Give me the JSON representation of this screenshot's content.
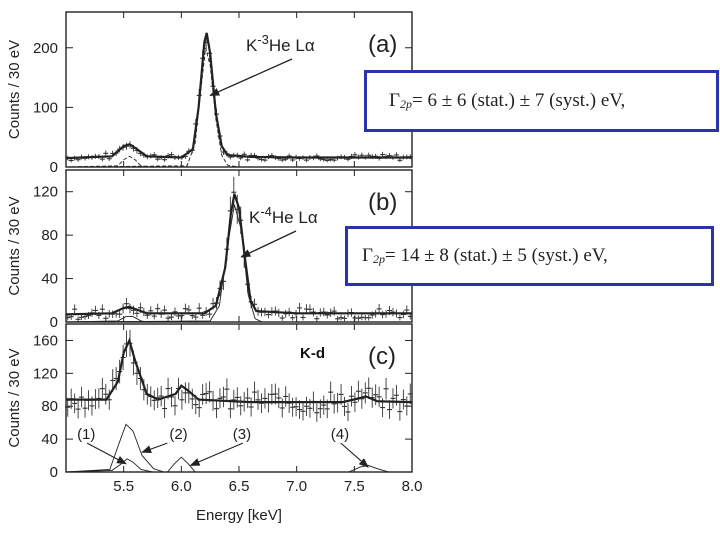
{
  "chart_data": {
    "type": "line",
    "xlabel": "Energy [keV]",
    "xlim": [
      5.0,
      8.0
    ],
    "xticks": [
      "5.5",
      "6.0",
      "6.5",
      "7.0",
      "7.5",
      "8.0"
    ],
    "xtick_values": [
      5.5,
      6.0,
      6.5,
      7.0,
      7.5,
      8.0
    ],
    "panels": [
      {
        "id": "a",
        "label": "(a)",
        "ylabel": "Counts / 30 eV",
        "ylim": [
          0,
          260
        ],
        "yticks": [
          "0",
          "100",
          "200"
        ],
        "ytick_values": [
          0,
          100,
          200
        ],
        "annotation_pre": "K",
        "annotation_sup": "-3",
        "annotation_post": "He Lα",
        "arrow_target": [
          6.25,
          120
        ],
        "series": [
          {
            "name": "total fit",
            "points": [
              [
                5.0,
                15
              ],
              [
                5.4,
                18
              ],
              [
                5.5,
                35
              ],
              [
                5.55,
                38
              ],
              [
                5.6,
                32
              ],
              [
                5.7,
                18
              ],
              [
                6.0,
                16
              ],
              [
                6.1,
                30
              ],
              [
                6.15,
                100
              ],
              [
                6.2,
                210
              ],
              [
                6.22,
                225
              ],
              [
                6.25,
                190
              ],
              [
                6.3,
                90
              ],
              [
                6.35,
                35
              ],
              [
                6.4,
                20
              ],
              [
                6.6,
                17
              ],
              [
                7.0,
                16
              ],
              [
                7.5,
                16
              ],
              [
                8.0,
                16
              ]
            ]
          },
          {
            "name": "K-3He Lα component",
            "points": [
              [
                5.0,
                0
              ],
              [
                6.05,
                2
              ],
              [
                6.12,
                40
              ],
              [
                6.17,
                130
              ],
              [
                6.21,
                200
              ],
              [
                6.25,
                170
              ],
              [
                6.3,
                80
              ],
              [
                6.35,
                20
              ],
              [
                6.4,
                3
              ],
              [
                6.5,
                0
              ],
              [
                8.0,
                0
              ]
            ]
          },
          {
            "name": "K-p Lα component",
            "points": [
              [
                5.0,
                0
              ],
              [
                5.45,
                2
              ],
              [
                5.5,
                12
              ],
              [
                5.55,
                18
              ],
              [
                5.6,
                12
              ],
              [
                5.65,
                2
              ],
              [
                5.7,
                0
              ],
              [
                8.0,
                0
              ]
            ]
          }
        ]
      },
      {
        "id": "b",
        "label": "(b)",
        "ylabel": "Counts / 30 eV",
        "ylim": [
          0,
          140
        ],
        "yticks": [
          "0",
          "40",
          "80",
          "120"
        ],
        "ytick_values": [
          0,
          40,
          80,
          120
        ],
        "annotation_pre": "K",
        "annotation_sup": "-4",
        "annotation_post": "He Lα",
        "arrow_target": [
          6.52,
          60
        ],
        "series": [
          {
            "name": "total fit",
            "points": [
              [
                5.0,
                7
              ],
              [
                5.4,
                8
              ],
              [
                5.5,
                13
              ],
              [
                5.55,
                14
              ],
              [
                5.6,
                12
              ],
              [
                5.7,
                8
              ],
              [
                6.2,
                8
              ],
              [
                6.3,
                15
              ],
              [
                6.38,
                50
              ],
              [
                6.43,
                100
              ],
              [
                6.46,
                118
              ],
              [
                6.5,
                105
              ],
              [
                6.55,
                60
              ],
              [
                6.6,
                20
              ],
              [
                6.65,
                10
              ],
              [
                7.0,
                8
              ],
              [
                7.5,
                8
              ],
              [
                8.0,
                8
              ]
            ]
          },
          {
            "name": "K-4He Lα component",
            "points": [
              [
                5.0,
                0
              ],
              [
                6.25,
                1
              ],
              [
                6.33,
                15
              ],
              [
                6.4,
                70
              ],
              [
                6.46,
                108
              ],
              [
                6.52,
                85
              ],
              [
                6.58,
                25
              ],
              [
                6.64,
                3
              ],
              [
                6.7,
                0
              ],
              [
                8.0,
                0
              ]
            ]
          },
          {
            "name": "K-p Lα component",
            "points": [
              [
                5.0,
                0
              ],
              [
                5.45,
                1
              ],
              [
                5.52,
                5
              ],
              [
                5.58,
                5
              ],
              [
                5.65,
                1
              ],
              [
                5.7,
                0
              ],
              [
                8.0,
                0
              ]
            ]
          }
        ]
      },
      {
        "id": "c",
        "label": "(c)",
        "ylabel": "Counts / 30 eV",
        "ylim": [
          0,
          180
        ],
        "yticks": [
          "0",
          "40",
          "80",
          "120",
          "160"
        ],
        "ytick_values": [
          0,
          40,
          80,
          120,
          160
        ],
        "annotation": "K-d",
        "series": [
          {
            "name": "total fit",
            "points": [
              [
                5.0,
                88
              ],
              [
                5.35,
                88
              ],
              [
                5.45,
                110
              ],
              [
                5.5,
                145
              ],
              [
                5.55,
                160
              ],
              [
                5.6,
                135
              ],
              [
                5.7,
                95
              ],
              [
                5.8,
                88
              ],
              [
                5.95,
                95
              ],
              [
                6.0,
                105
              ],
              [
                6.05,
                100
              ],
              [
                6.15,
                88
              ],
              [
                6.6,
                85
              ],
              [
                7.0,
                85
              ],
              [
                7.4,
                85
              ],
              [
                7.55,
                90
              ],
              [
                7.6,
                92
              ],
              [
                7.7,
                86
              ],
              [
                8.0,
                85
              ]
            ]
          },
          {
            "name": "(1) component",
            "points": [
              [
                5.0,
                0
              ],
              [
                5.4,
                2
              ],
              [
                5.48,
                10
              ],
              [
                5.53,
                16
              ],
              [
                5.58,
                12
              ],
              [
                5.65,
                3
              ],
              [
                5.75,
                0
              ],
              [
                8.0,
                0
              ]
            ]
          },
          {
            "name": "(2) component",
            "points": [
              [
                5.0,
                0
              ],
              [
                5.38,
                3
              ],
              [
                5.46,
                35
              ],
              [
                5.52,
                58
              ],
              [
                5.58,
                50
              ],
              [
                5.66,
                20
              ],
              [
                5.76,
                4
              ],
              [
                5.85,
                0
              ],
              [
                8.0,
                0
              ]
            ]
          },
          {
            "name": "(3) component",
            "points": [
              [
                5.0,
                0
              ],
              [
                5.88,
                0
              ],
              [
                5.94,
                10
              ],
              [
                6.0,
                18
              ],
              [
                6.06,
                10
              ],
              [
                6.12,
                0
              ],
              [
                8.0,
                0
              ]
            ]
          },
          {
            "name": "(4) component",
            "points": [
              [
                5.0,
                0
              ],
              [
                7.45,
                0
              ],
              [
                7.55,
                6
              ],
              [
                7.62,
                8
              ],
              [
                7.7,
                4
              ],
              [
                7.8,
                0
              ],
              [
                8.0,
                0
              ]
            ]
          }
        ],
        "component_labels": [
          {
            "text": "(1)",
            "at": [
              5.2,
              40
            ],
            "arrow_target": [
              5.52,
              10
            ]
          },
          {
            "text": "(2)",
            "at": [
              6.0,
              40
            ],
            "arrow_target": [
              5.66,
              24
            ]
          },
          {
            "text": "(3)",
            "at": [
              6.55,
              40
            ],
            "arrow_target": [
              6.08,
              8
            ]
          },
          {
            "text": "(4)",
            "at": [
              7.4,
              40
            ],
            "arrow_target": [
              7.62,
              6
            ]
          }
        ]
      }
    ]
  },
  "equations": {
    "eq_a": {
      "sym": "Γ",
      "sub": "2p",
      "body": " = 6 ± 6 (stat.) ± 7 (syst.) eV,"
    },
    "eq_b": {
      "sym": "Γ",
      "sub": "2p",
      "body": " = 14 ± 8 (stat.) ± 5 (syst.) eV,"
    }
  },
  "colors": {
    "axes": "#222222",
    "data": "#333333",
    "box_border": "#2b33a8"
  }
}
